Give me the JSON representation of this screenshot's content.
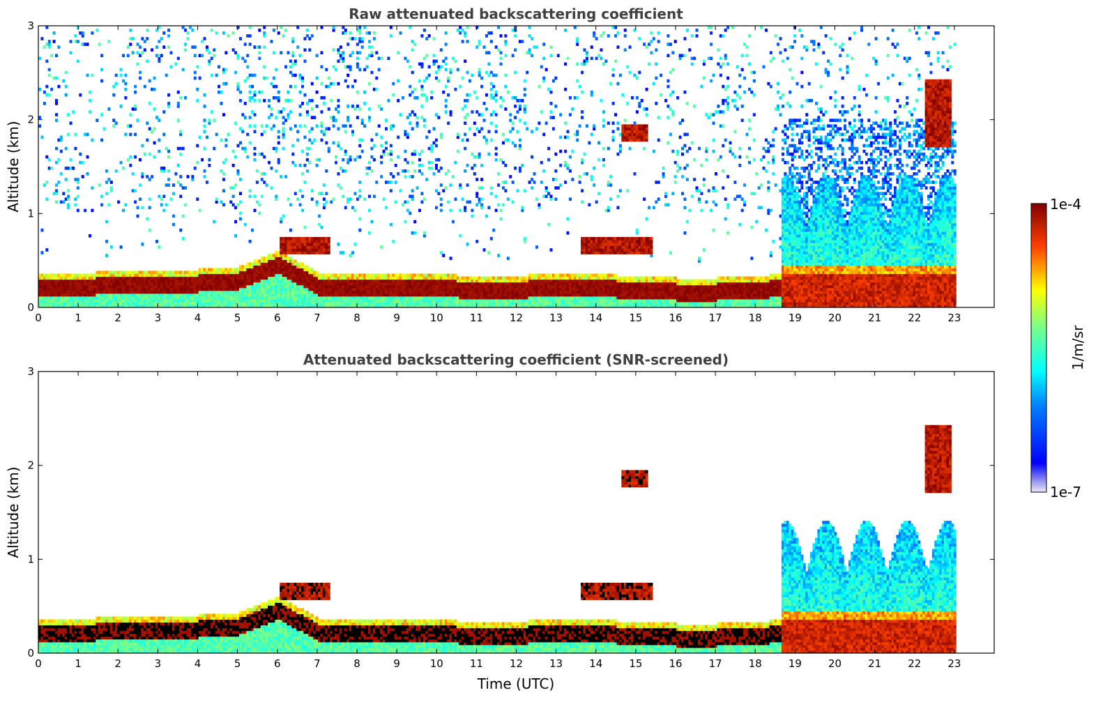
{
  "chart_data": [
    {
      "type": "heatmap",
      "title": "Raw attenuated backscattering coefficient",
      "xlabel": "",
      "ylabel": "Altitude (km)",
      "xlim": [
        0,
        24
      ],
      "ylim": [
        0,
        3
      ],
      "xticks": [
        "0",
        "1",
        "2",
        "3",
        "4",
        "5",
        "6",
        "7",
        "8",
        "9",
        "10",
        "11",
        "12",
        "13",
        "14",
        "15",
        "16",
        "17",
        "18",
        "19",
        "20",
        "21",
        "22",
        "23"
      ],
      "yticks": [
        "0",
        "1",
        "2",
        "3"
      ],
      "data_end_hour": 23,
      "layers": [
        {
          "kind": "boundary_layer",
          "hours": [
            0,
            1,
            2,
            3,
            4,
            5,
            6,
            7,
            8,
            9,
            10,
            11,
            12,
            13,
            14,
            15,
            16,
            17,
            18,
            18.6
          ],
          "top_km": [
            0.2,
            0.2,
            0.25,
            0.25,
            0.25,
            0.28,
            0.45,
            0.22,
            0.22,
            0.22,
            0.2,
            0.18,
            0.18,
            0.22,
            0.2,
            0.18,
            0.16,
            0.16,
            0.18,
            0.2
          ]
        },
        {
          "kind": "cloud",
          "start_h": 6.0,
          "end_h": 7.3,
          "base_km": 0.55,
          "top_km": 0.75
        },
        {
          "kind": "cloud",
          "start_h": 13.6,
          "end_h": 15.4,
          "base_km": 0.55,
          "top_km": 0.75
        },
        {
          "kind": "cloud",
          "start_h": 14.6,
          "end_h": 15.3,
          "base_km": 1.75,
          "top_km": 1.95
        },
        {
          "kind": "cloud",
          "start_h": 22.2,
          "end_h": 22.9,
          "base_km": 1.7,
          "top_km": 2.4
        },
        {
          "kind": "precipitation",
          "start_h": 18.6,
          "end_h": 23,
          "top_km": 1.4
        }
      ]
    },
    {
      "type": "heatmap",
      "title": "Attenuated backscattering coefficient (SNR-screened)",
      "xlabel": "Time (UTC)",
      "ylabel": "Altitude (km)",
      "xlim": [
        0,
        24
      ],
      "ylim": [
        0,
        3
      ],
      "xticks": [
        "0",
        "1",
        "2",
        "3",
        "4",
        "5",
        "6",
        "7",
        "8",
        "9",
        "10",
        "11",
        "12",
        "13",
        "14",
        "15",
        "16",
        "17",
        "18",
        "19",
        "20",
        "21",
        "22",
        "23"
      ],
      "yticks": [
        "0",
        "1",
        "2",
        "3"
      ],
      "data_end_hour": 23
    }
  ],
  "colorbar": {
    "label": "1/m/sr",
    "max_label": "1e-4",
    "min_label": "1e-7",
    "colormap": "jet",
    "scale": "log",
    "colors": [
      "#e8e8f8",
      "#0000ff",
      "#00ffff",
      "#ffff00",
      "#ff0000",
      "#800000"
    ]
  }
}
